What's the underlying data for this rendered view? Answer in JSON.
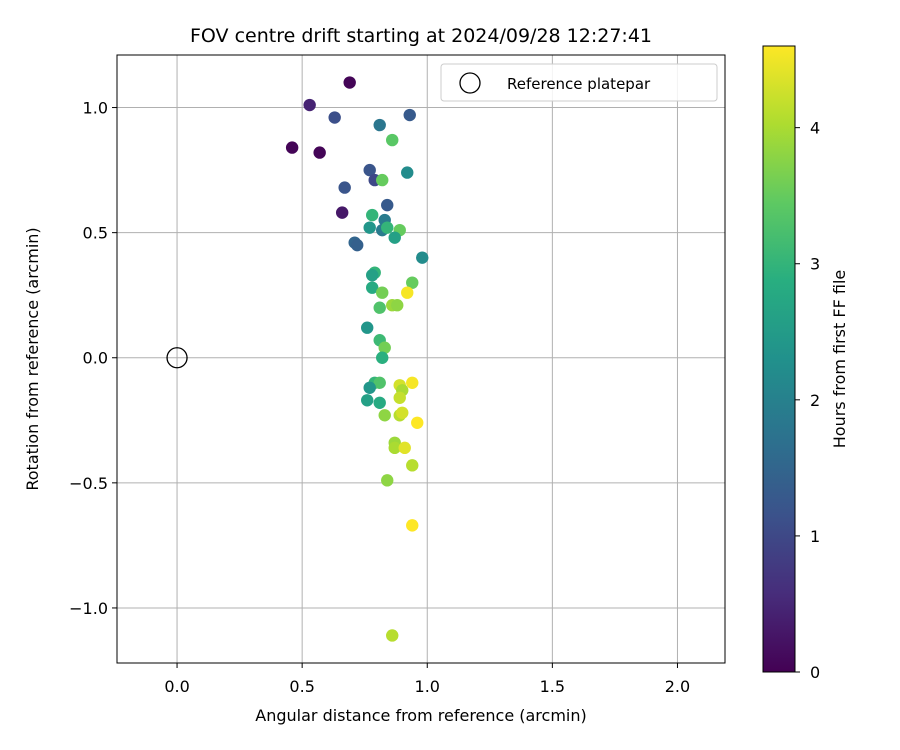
{
  "chart_data": {
    "type": "scatter",
    "title": "FOV centre drift starting at 2024/09/28 12:27:41",
    "xlabel": "Angular distance from reference (arcmin)",
    "ylabel": "Rotation from reference (arcmin)",
    "xlim": [
      -0.24,
      2.19
    ],
    "ylim": [
      -1.22,
      1.21
    ],
    "xticks": [
      0.0,
      0.5,
      1.0,
      1.5,
      2.0
    ],
    "xtick_labels": [
      "0.0",
      "0.5",
      "1.0",
      "1.5",
      "2.0"
    ],
    "yticks": [
      -1.0,
      -0.5,
      0.0,
      0.5,
      1.0
    ],
    "ytick_labels": [
      "−1.0",
      "−0.5",
      "0.0",
      "0.5",
      "1.0"
    ],
    "grid": true,
    "legend": {
      "position": "top-right",
      "entries": [
        "Reference platepar"
      ]
    },
    "reference_point": {
      "x": 0.0,
      "y": 0.0,
      "label": "Reference platepar"
    },
    "colorbar": {
      "label": "Hours from first FF file",
      "range": [
        0,
        4.6
      ],
      "ticks": [
        0,
        1,
        2,
        3,
        4
      ],
      "tick_labels": [
        "0",
        "1",
        "2",
        "3",
        "4"
      ],
      "colormap": "viridis"
    },
    "points": [
      {
        "x": 0.69,
        "y": 1.1,
        "h": 0.05
      },
      {
        "x": 0.53,
        "y": 1.01,
        "h": 0.45
      },
      {
        "x": 0.46,
        "y": 0.84,
        "h": 0.05
      },
      {
        "x": 0.57,
        "y": 0.82,
        "h": 0.05
      },
      {
        "x": 0.63,
        "y": 0.96,
        "h": 1.1
      },
      {
        "x": 0.81,
        "y": 0.93,
        "h": 1.8
      },
      {
        "x": 0.93,
        "y": 0.97,
        "h": 1.3
      },
      {
        "x": 0.86,
        "y": 0.87,
        "h": 3.4
      },
      {
        "x": 0.67,
        "y": 0.68,
        "h": 1.2
      },
      {
        "x": 0.77,
        "y": 0.75,
        "h": 1.2
      },
      {
        "x": 0.79,
        "y": 0.71,
        "h": 1.0
      },
      {
        "x": 0.82,
        "y": 0.71,
        "h": 3.5
      },
      {
        "x": 0.92,
        "y": 0.74,
        "h": 2.2
      },
      {
        "x": 0.66,
        "y": 0.58,
        "h": 0.3
      },
      {
        "x": 0.84,
        "y": 0.61,
        "h": 1.3
      },
      {
        "x": 0.78,
        "y": 0.57,
        "h": 3.0
      },
      {
        "x": 0.83,
        "y": 0.55,
        "h": 1.9
      },
      {
        "x": 0.77,
        "y": 0.52,
        "h": 2.4
      },
      {
        "x": 0.82,
        "y": 0.51,
        "h": 1.9
      },
      {
        "x": 0.84,
        "y": 0.52,
        "h": 3.0
      },
      {
        "x": 0.89,
        "y": 0.51,
        "h": 3.5
      },
      {
        "x": 0.87,
        "y": 0.48,
        "h": 2.6
      },
      {
        "x": 0.71,
        "y": 0.46,
        "h": 1.5
      },
      {
        "x": 0.72,
        "y": 0.45,
        "h": 1.4
      },
      {
        "x": 0.98,
        "y": 0.4,
        "h": 2.2
      },
      {
        "x": 0.79,
        "y": 0.34,
        "h": 3.0
      },
      {
        "x": 0.78,
        "y": 0.33,
        "h": 2.6
      },
      {
        "x": 0.94,
        "y": 0.3,
        "h": 3.5
      },
      {
        "x": 0.78,
        "y": 0.28,
        "h": 2.8
      },
      {
        "x": 0.82,
        "y": 0.26,
        "h": 3.6
      },
      {
        "x": 0.92,
        "y": 0.26,
        "h": 4.55
      },
      {
        "x": 0.86,
        "y": 0.21,
        "h": 3.9
      },
      {
        "x": 0.88,
        "y": 0.21,
        "h": 3.8
      },
      {
        "x": 0.81,
        "y": 0.2,
        "h": 3.3
      },
      {
        "x": 0.76,
        "y": 0.12,
        "h": 2.4
      },
      {
        "x": 0.81,
        "y": 0.07,
        "h": 3.1
      },
      {
        "x": 0.83,
        "y": 0.04,
        "h": 3.6
      },
      {
        "x": 0.82,
        "y": 0.0,
        "h": 2.9
      },
      {
        "x": 0.79,
        "y": -0.1,
        "h": 3.0
      },
      {
        "x": 0.81,
        "y": -0.1,
        "h": 3.3
      },
      {
        "x": 0.77,
        "y": -0.12,
        "h": 2.4
      },
      {
        "x": 0.89,
        "y": -0.11,
        "h": 4.3
      },
      {
        "x": 0.9,
        "y": -0.13,
        "h": 4.0
      },
      {
        "x": 0.94,
        "y": -0.1,
        "h": 4.55
      },
      {
        "x": 0.89,
        "y": -0.16,
        "h": 4.2
      },
      {
        "x": 0.76,
        "y": -0.17,
        "h": 2.6
      },
      {
        "x": 0.81,
        "y": -0.18,
        "h": 2.8
      },
      {
        "x": 0.83,
        "y": -0.23,
        "h": 3.8
      },
      {
        "x": 0.89,
        "y": -0.23,
        "h": 4.1
      },
      {
        "x": 0.9,
        "y": -0.22,
        "h": 4.3
      },
      {
        "x": 0.96,
        "y": -0.26,
        "h": 4.6
      },
      {
        "x": 0.87,
        "y": -0.34,
        "h": 3.9
      },
      {
        "x": 0.87,
        "y": -0.36,
        "h": 4.0
      },
      {
        "x": 0.91,
        "y": -0.36,
        "h": 4.4
      },
      {
        "x": 0.94,
        "y": -0.43,
        "h": 4.1
      },
      {
        "x": 0.84,
        "y": -0.49,
        "h": 3.8
      },
      {
        "x": 0.94,
        "y": -0.67,
        "h": 4.6
      },
      {
        "x": 0.86,
        "y": -1.11,
        "h": 4.1
      }
    ]
  }
}
